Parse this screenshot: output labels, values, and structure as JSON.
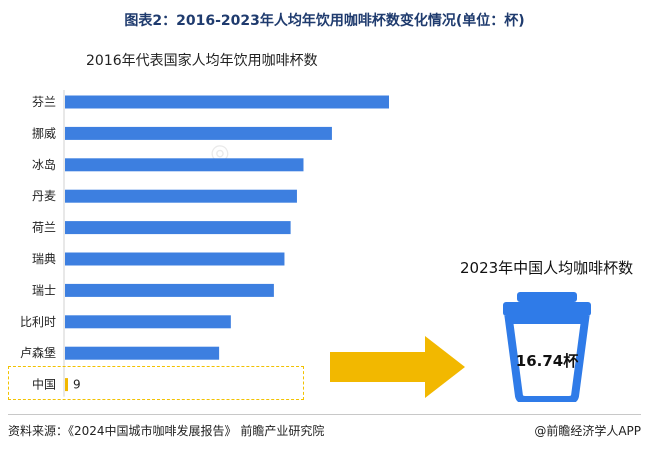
{
  "figure_title": "图表2：2016-2023年人均年饮用咖啡杯数变化情况(单位：杯)",
  "chart_data": {
    "type": "bar",
    "orientation": "horizontal",
    "title": "2016年代表国家人均年饮用咖啡杯数",
    "categories": [
      "芬兰",
      "挪威",
      "冰岛",
      "丹麦",
      "荷兰",
      "瑞典",
      "瑞士",
      "比利时",
      "卢森堡",
      "中国"
    ],
    "values": [
      1686,
      1389,
      1241,
      1207,
      1174,
      1142,
      1087,
      863,
      802,
      9
    ],
    "data_labels": [
      "",
      "",
      "",
      "",
      "",
      "",
      "",
      "",
      "",
      "9"
    ],
    "bar_color": "#3d7fe0",
    "highlight_color": "#f2b800",
    "highlight_category": "中国",
    "xlim": [
      0,
      1700
    ],
    "grid": false,
    "axis_visible": false
  },
  "panel_2023": {
    "title": "2023年中国人均咖啡杯数",
    "value": "16.74杯",
    "cup_color": "#2f7be8"
  },
  "arrow_color": "#f2b800",
  "footer": {
    "source": "资料来源：《2024中国城市咖啡发展报告》 前瞻产业研究院",
    "credit": "@前瞻经济学人APP"
  }
}
